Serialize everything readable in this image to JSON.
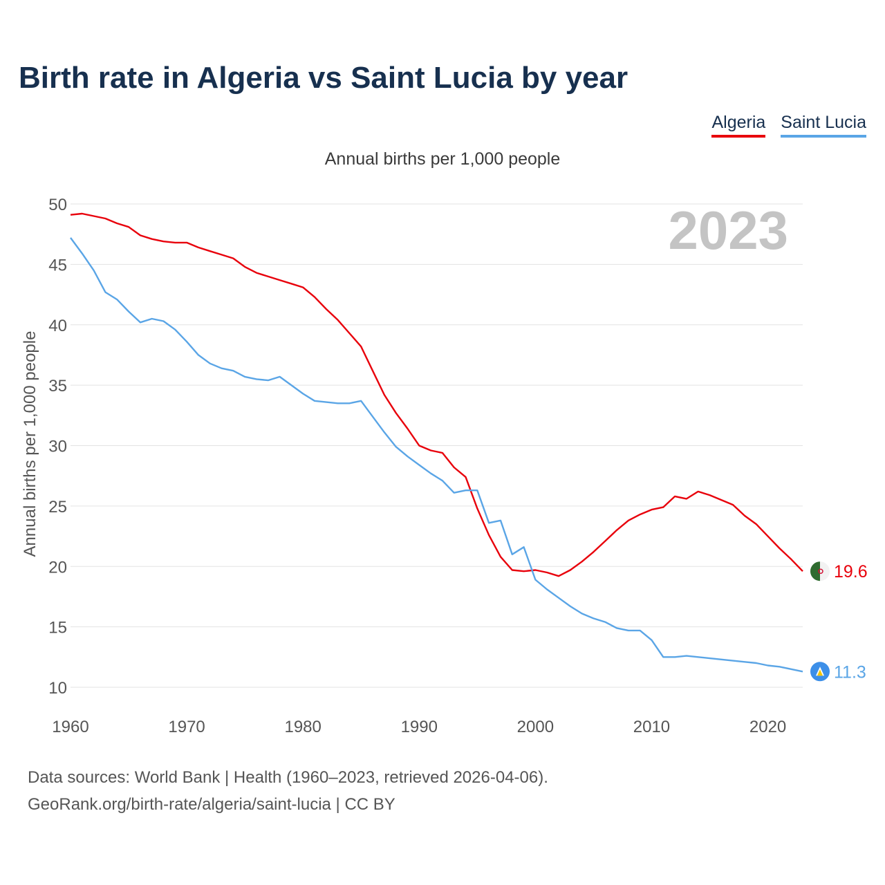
{
  "title": "Birth rate in Algeria vs Saint Lucia by year",
  "legend": [
    "Algeria",
    "Saint Lucia"
  ],
  "subtitle": "Annual births per 1,000 people",
  "year_label": "2023",
  "footer": {
    "line1": "Data sources: World Bank | Health (1960–2023, retrieved 2026-04-06).",
    "line2": "GeoRank.org/birth-rate/algeria/saint-lucia | CC BY"
  },
  "colors": {
    "algeria": "#e8000b",
    "saint_lucia": "#5aa5e6"
  },
  "chart_data": {
    "type": "line",
    "ylabel": "Annual births per 1,000 people",
    "xlabel": "",
    "xlim": [
      1960,
      2023
    ],
    "ylim": [
      10,
      50
    ],
    "yticks": [
      10,
      15,
      20,
      25,
      30,
      35,
      40,
      45,
      50
    ],
    "xticks": [
      1960,
      1970,
      1980,
      1990,
      2000,
      2010,
      2020
    ],
    "grid": true,
    "legend_position": "top-right",
    "x": [
      1960,
      1961,
      1962,
      1963,
      1964,
      1965,
      1966,
      1967,
      1968,
      1969,
      1970,
      1971,
      1972,
      1973,
      1974,
      1975,
      1976,
      1977,
      1978,
      1979,
      1980,
      1981,
      1982,
      1983,
      1984,
      1985,
      1986,
      1987,
      1988,
      1989,
      1990,
      1991,
      1992,
      1993,
      1994,
      1995,
      1996,
      1997,
      1998,
      1999,
      2000,
      2001,
      2002,
      2003,
      2004,
      2005,
      2006,
      2007,
      2008,
      2009,
      2010,
      2011,
      2012,
      2013,
      2014,
      2015,
      2016,
      2017,
      2018,
      2019,
      2020,
      2021,
      2022,
      2023
    ],
    "series": [
      {
        "name": "Algeria",
        "values": [
          49.1,
          49.2,
          49.0,
          48.8,
          48.4,
          48.1,
          47.4,
          47.1,
          46.9,
          46.8,
          46.8,
          46.4,
          46.1,
          45.8,
          45.5,
          44.8,
          44.3,
          44.0,
          43.7,
          43.4,
          43.1,
          42.3,
          41.3,
          40.4,
          39.3,
          38.2,
          36.2,
          34.2,
          32.7,
          31.4,
          30.0,
          29.6,
          29.4,
          28.2,
          27.4,
          24.8,
          22.6,
          20.8,
          19.7,
          19.6,
          19.7,
          19.5,
          19.2,
          19.7,
          20.4,
          21.2,
          22.1,
          23.0,
          23.8,
          24.3,
          24.7,
          24.9,
          25.8,
          25.6,
          26.2,
          25.9,
          25.5,
          25.1,
          24.2,
          23.5,
          22.5,
          21.5,
          20.6,
          19.6
        ]
      },
      {
        "name": "Saint Lucia",
        "values": [
          47.2,
          45.9,
          44.5,
          42.7,
          42.1,
          41.1,
          40.2,
          40.5,
          40.3,
          39.6,
          38.6,
          37.5,
          36.8,
          36.4,
          36.2,
          35.7,
          35.5,
          35.4,
          35.7,
          35.0,
          34.3,
          33.7,
          33.6,
          33.5,
          33.5,
          33.7,
          32.4,
          31.1,
          29.9,
          29.1,
          28.4,
          27.7,
          27.1,
          26.1,
          26.3,
          26.3,
          23.6,
          23.8,
          21.0,
          21.6,
          18.9,
          18.1,
          17.4,
          16.7,
          16.1,
          15.7,
          15.4,
          14.9,
          14.7,
          14.7,
          13.9,
          12.5,
          12.5,
          12.6,
          12.5,
          12.4,
          12.3,
          12.2,
          12.1,
          12.0,
          11.8,
          11.7,
          11.5,
          11.3
        ]
      }
    ],
    "end_labels": [
      "19.6",
      "11.3"
    ]
  }
}
